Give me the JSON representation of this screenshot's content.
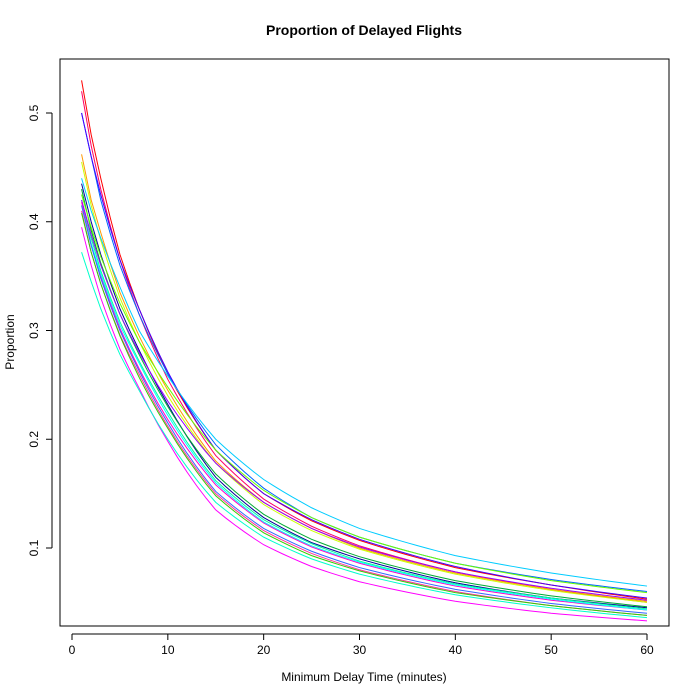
{
  "chart_data": {
    "type": "line",
    "title": "Proportion of Delayed Flights",
    "xlabel": "Minimum Delay Time (minutes)",
    "ylabel": "Proportion",
    "xlim": [
      1,
      60
    ],
    "ylim": [
      0.03,
      0.53
    ],
    "xticks": [
      0,
      10,
      20,
      30,
      40,
      50,
      60
    ],
    "yticks": [
      0.1,
      0.2,
      0.3,
      0.4,
      0.5
    ],
    "xtick_labels": [
      "0",
      "10",
      "20",
      "30",
      "40",
      "50",
      "60"
    ],
    "ytick_labels": [
      "0.1",
      "0.2",
      "0.3",
      "0.4",
      "0.5"
    ],
    "grid": false,
    "legend": "none",
    "x_sample_points": [
      1,
      2,
      3,
      5,
      7,
      10,
      15,
      20,
      25,
      30,
      40,
      50,
      60
    ],
    "series": [
      {
        "color": "#ff0000",
        "values": [
          0.53,
          0.48,
          0.44,
          0.37,
          0.32,
          0.26,
          0.19,
          0.15,
          0.125,
          0.107,
          0.082,
          0.066,
          0.053
        ]
      },
      {
        "color": "#ff0066",
        "values": [
          0.52,
          0.47,
          0.43,
          0.365,
          0.315,
          0.255,
          0.185,
          0.145,
          0.12,
          0.102,
          0.078,
          0.062,
          0.05
        ]
      },
      {
        "color": "#0066ff",
        "values": [
          0.5,
          0.46,
          0.42,
          0.36,
          0.315,
          0.26,
          0.195,
          0.155,
          0.128,
          0.11,
          0.086,
          0.071,
          0.06
        ]
      },
      {
        "color": "#4400ff",
        "values": [
          0.5,
          0.46,
          0.425,
          0.365,
          0.32,
          0.262,
          0.19,
          0.15,
          0.126,
          0.108,
          0.083,
          0.066,
          0.054
        ]
      },
      {
        "color": "#ff9900",
        "values": [
          0.462,
          0.42,
          0.39,
          0.335,
          0.295,
          0.245,
          0.18,
          0.142,
          0.118,
          0.1,
          0.077,
          0.062,
          0.051
        ]
      },
      {
        "color": "#ccff00",
        "values": [
          0.455,
          0.415,
          0.383,
          0.33,
          0.29,
          0.24,
          0.178,
          0.14,
          0.116,
          0.099,
          0.076,
          0.061,
          0.05
        ]
      },
      {
        "color": "#00ccff",
        "values": [
          0.44,
          0.41,
          0.385,
          0.34,
          0.3,
          0.258,
          0.2,
          0.163,
          0.137,
          0.118,
          0.093,
          0.077,
          0.065
        ]
      },
      {
        "color": "#000099",
        "values": [
          0.435,
          0.4,
          0.37,
          0.32,
          0.282,
          0.232,
          0.165,
          0.128,
          0.105,
          0.09,
          0.068,
          0.054,
          0.045
        ]
      },
      {
        "color": "#00aa33",
        "values": [
          0.43,
          0.392,
          0.362,
          0.315,
          0.278,
          0.23,
          0.168,
          0.131,
          0.108,
          0.092,
          0.07,
          0.056,
          0.046
        ]
      },
      {
        "color": "#66ff00",
        "values": [
          0.425,
          0.395,
          0.368,
          0.325,
          0.29,
          0.248,
          0.19,
          0.153,
          0.128,
          0.11,
          0.086,
          0.07,
          0.059
        ]
      },
      {
        "color": "#00ff99",
        "values": [
          0.42,
          0.385,
          0.355,
          0.308,
          0.272,
          0.225,
          0.162,
          0.126,
          0.104,
          0.088,
          0.067,
          0.054,
          0.044
        ]
      },
      {
        "color": "#9900ff",
        "values": [
          0.42,
          0.388,
          0.36,
          0.315,
          0.28,
          0.235,
          0.178,
          0.142,
          0.118,
          0.101,
          0.078,
          0.063,
          0.052
        ]
      },
      {
        "color": "#ff00cc",
        "values": [
          0.418,
          0.38,
          0.35,
          0.302,
          0.265,
          0.218,
          0.158,
          0.123,
          0.101,
          0.086,
          0.065,
          0.052,
          0.043
        ]
      },
      {
        "color": "#00ffff",
        "values": [
          0.415,
          0.38,
          0.352,
          0.305,
          0.27,
          0.222,
          0.16,
          0.124,
          0.102,
          0.087,
          0.066,
          0.053,
          0.043
        ]
      },
      {
        "color": "#3366ff",
        "values": [
          0.415,
          0.378,
          0.348,
          0.3,
          0.263,
          0.215,
          0.152,
          0.118,
          0.097,
          0.082,
          0.062,
          0.049,
          0.04
        ]
      },
      {
        "color": "#ff3399",
        "values": [
          0.41,
          0.372,
          0.343,
          0.296,
          0.26,
          0.212,
          0.15,
          0.116,
          0.095,
          0.08,
          0.06,
          0.047,
          0.038
        ]
      },
      {
        "color": "#33cc00",
        "values": [
          0.408,
          0.372,
          0.343,
          0.295,
          0.257,
          0.21,
          0.148,
          0.114,
          0.093,
          0.079,
          0.059,
          0.047,
          0.038
        ]
      },
      {
        "color": "#ff00ff",
        "values": [
          0.395,
          0.36,
          0.33,
          0.283,
          0.247,
          0.198,
          0.135,
          0.103,
          0.083,
          0.069,
          0.051,
          0.04,
          0.033
        ]
      },
      {
        "color": "#00ffcc",
        "values": [
          0.372,
          0.345,
          0.32,
          0.278,
          0.245,
          0.2,
          0.142,
          0.11,
          0.09,
          0.076,
          0.057,
          0.045,
          0.036
        ]
      }
    ]
  }
}
